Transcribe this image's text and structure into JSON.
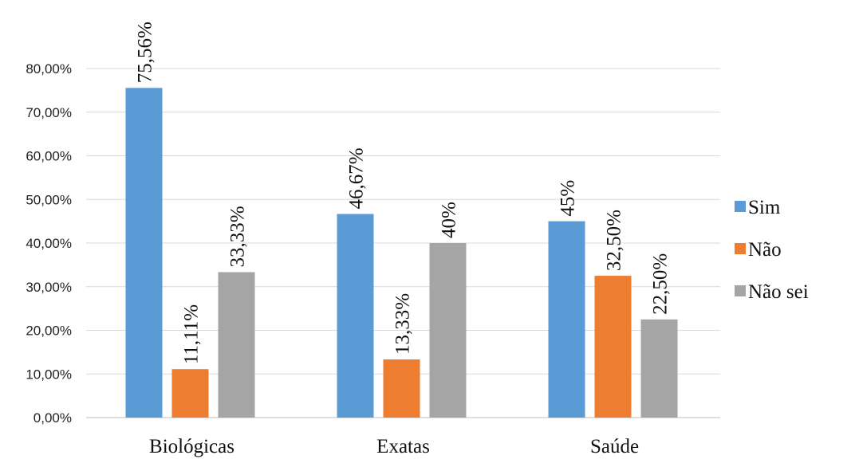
{
  "chart_data": {
    "type": "bar",
    "categories": [
      "Biológicas",
      "Exatas",
      "Saúde"
    ],
    "series": [
      {
        "name": "Sim",
        "values": [
          75.56,
          46.67,
          45
        ],
        "labels": [
          "75,56%",
          "46,67%",
          "45%"
        ],
        "color": "#5B9BD5"
      },
      {
        "name": "Não",
        "values": [
          11.11,
          13.33,
          32.5
        ],
        "labels": [
          "11,11%",
          "13,33%",
          "32,50%"
        ],
        "color": "#ED7D31"
      },
      {
        "name": "Não sei",
        "values": [
          33.33,
          40,
          22.5
        ],
        "labels": [
          "33,33%",
          "40%",
          "22,50%"
        ],
        "color": "#A5A5A5"
      }
    ],
    "ylim": [
      0,
      80
    ],
    "yticks": [
      "0,00%",
      "10,00%",
      "20,00%",
      "30,00%",
      "40,00%",
      "50,00%",
      "60,00%",
      "70,00%",
      "80,00%"
    ],
    "grid": true,
    "legend_position": "right"
  }
}
